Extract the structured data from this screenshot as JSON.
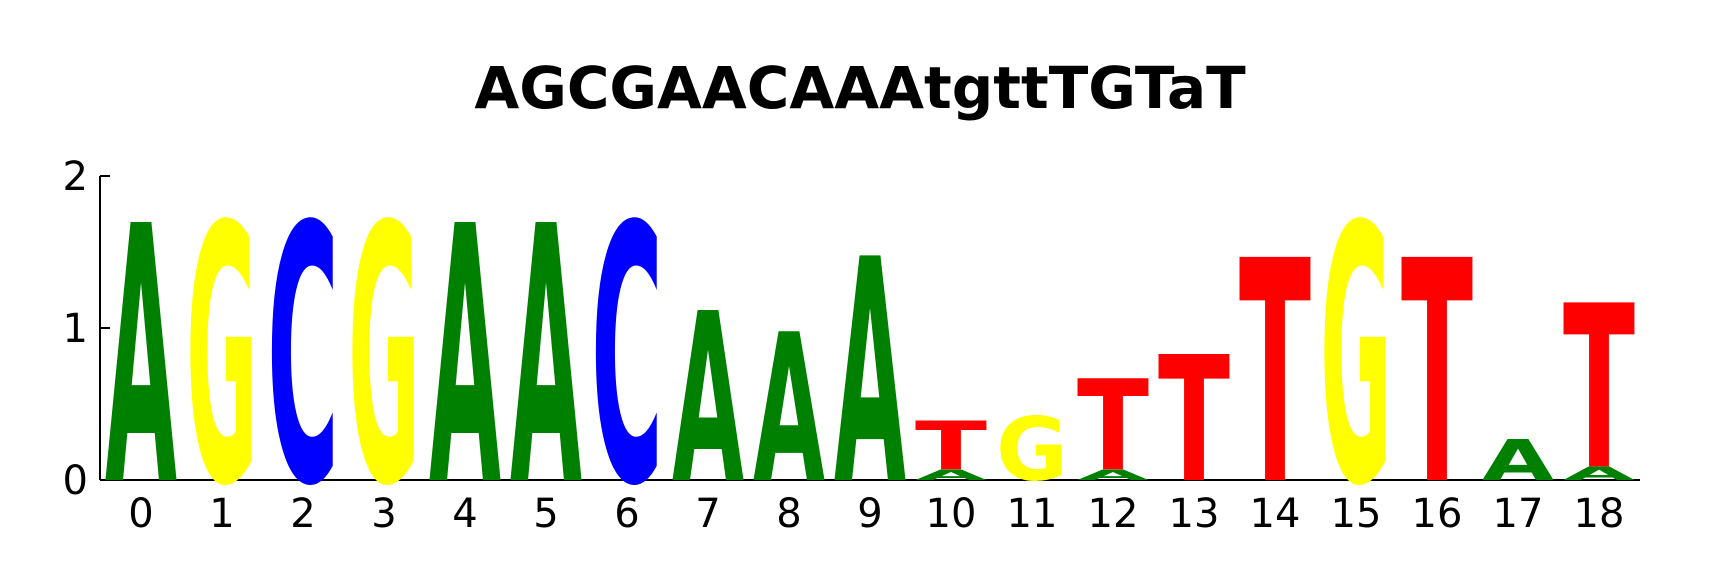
{
  "chart_data": {
    "type": "sequence-logo",
    "title": "AGCGAACAAAtgttTGTaT",
    "xlabel": "",
    "ylabel": "",
    "ylim": [
      0,
      2
    ],
    "y_ticks": [
      "0",
      "1",
      "2"
    ],
    "x_ticks": [
      "0",
      "1",
      "2",
      "3",
      "4",
      "5",
      "6",
      "7",
      "8",
      "9",
      "10",
      "11",
      "12",
      "13",
      "14",
      "15",
      "16",
      "17",
      "18"
    ],
    "colors": {
      "A": "#008000",
      "C": "#0000ff",
      "G": "#ffff00",
      "T": "#ff0000"
    },
    "positions": [
      {
        "pos": 0,
        "letters": [
          {
            "letter": "A",
            "height": 1.7
          }
        ]
      },
      {
        "pos": 1,
        "letters": [
          {
            "letter": "G",
            "height": 1.7
          }
        ]
      },
      {
        "pos": 2,
        "letters": [
          {
            "letter": "C",
            "height": 1.7
          }
        ]
      },
      {
        "pos": 3,
        "letters": [
          {
            "letter": "G",
            "height": 1.7
          }
        ]
      },
      {
        "pos": 4,
        "letters": [
          {
            "letter": "A",
            "height": 1.7
          }
        ]
      },
      {
        "pos": 5,
        "letters": [
          {
            "letter": "A",
            "height": 1.7
          }
        ]
      },
      {
        "pos": 6,
        "letters": [
          {
            "letter": "C",
            "height": 1.7
          }
        ]
      },
      {
        "pos": 7,
        "letters": [
          {
            "letter": "A",
            "height": 1.12
          }
        ]
      },
      {
        "pos": 8,
        "letters": [
          {
            "letter": "A",
            "height": 0.98
          }
        ]
      },
      {
        "pos": 9,
        "letters": [
          {
            "letter": "A",
            "height": 1.48
          }
        ]
      },
      {
        "pos": 10,
        "letters": [
          {
            "letter": "A",
            "height": 0.07
          },
          {
            "letter": "T",
            "height": 0.32
          }
        ]
      },
      {
        "pos": 11,
        "letters": [
          {
            "letter": "G",
            "height": 0.42
          }
        ]
      },
      {
        "pos": 12,
        "letters": [
          {
            "letter": "A",
            "height": 0.07
          },
          {
            "letter": "T",
            "height": 0.6
          }
        ]
      },
      {
        "pos": 13,
        "letters": [
          {
            "letter": "T",
            "height": 0.83
          }
        ]
      },
      {
        "pos": 14,
        "letters": [
          {
            "letter": "T",
            "height": 1.47
          }
        ]
      },
      {
        "pos": 15,
        "letters": [
          {
            "letter": "G",
            "height": 1.7
          }
        ]
      },
      {
        "pos": 16,
        "letters": [
          {
            "letter": "T",
            "height": 1.47
          }
        ]
      },
      {
        "pos": 17,
        "letters": [
          {
            "letter": "A",
            "height": 0.27
          }
        ]
      },
      {
        "pos": 18,
        "letters": [
          {
            "letter": "A",
            "height": 0.09
          },
          {
            "letter": "T",
            "height": 1.08
          }
        ]
      }
    ]
  }
}
